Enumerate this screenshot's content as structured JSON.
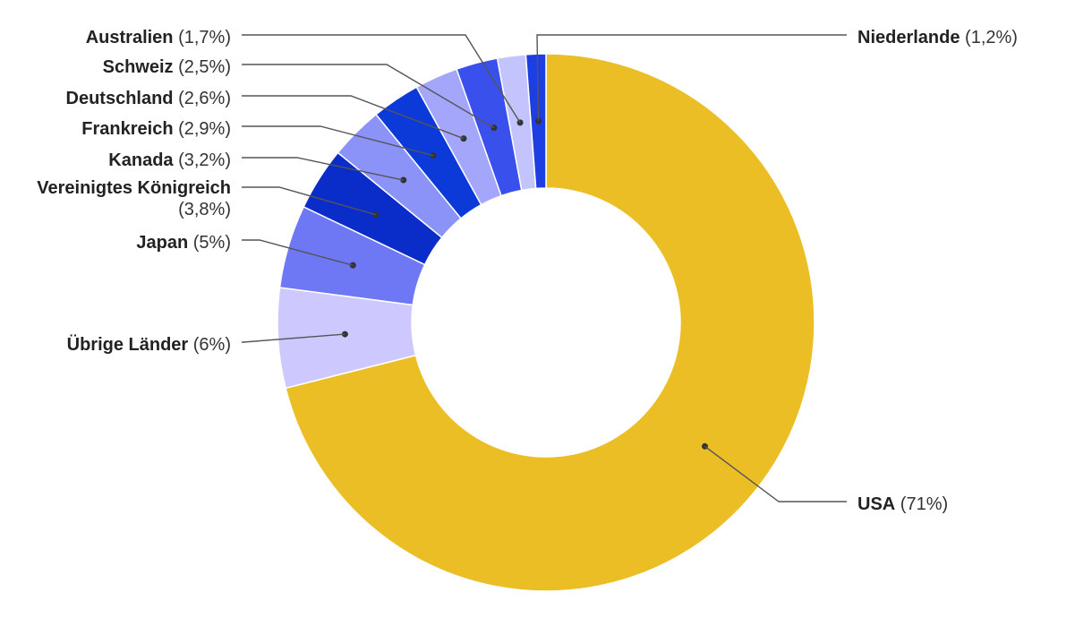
{
  "chart_data": {
    "type": "pie",
    "variant": "donut",
    "title": "",
    "slices": [
      {
        "name": "USA",
        "value": 71,
        "pct_label": "(71%)",
        "color": "#ebbe25"
      },
      {
        "name": "Übrige Länder",
        "value": 6,
        "pct_label": "(6%)",
        "color": "#cdc9ff"
      },
      {
        "name": "Japan",
        "value": 5,
        "pct_label": "(5%)",
        "color": "#6e78f5"
      },
      {
        "name": "Vereinigtes Königreich",
        "name_lines": [
          "Vereinigtes Königreich",
          ""
        ],
        "value": 3.8,
        "pct_label": "(3,8%)",
        "color": "#0a2cc8"
      },
      {
        "name": "Kanada",
        "value": 3.2,
        "pct_label": "(3,2%)",
        "color": "#8c93f8"
      },
      {
        "name": "Frankreich",
        "value": 2.9,
        "pct_label": "(2,9%)",
        "color": "#0c3ad8"
      },
      {
        "name": "Deutschland",
        "value": 2.6,
        "pct_label": "(2,6%)",
        "color": "#a3a6fb"
      },
      {
        "name": "Schweiz",
        "value": 2.5,
        "pct_label": "(2,5%)",
        "color": "#3a50ec"
      },
      {
        "name": "Australien",
        "value": 1.7,
        "pct_label": "(1,7%)",
        "color": "#c3c3fd"
      },
      {
        "name": "Niederlande",
        "value": 1.2,
        "pct_label": "(1,2%)",
        "color": "#1d3fe2"
      }
    ],
    "legend": "none",
    "labels": "outside with leader lines"
  }
}
